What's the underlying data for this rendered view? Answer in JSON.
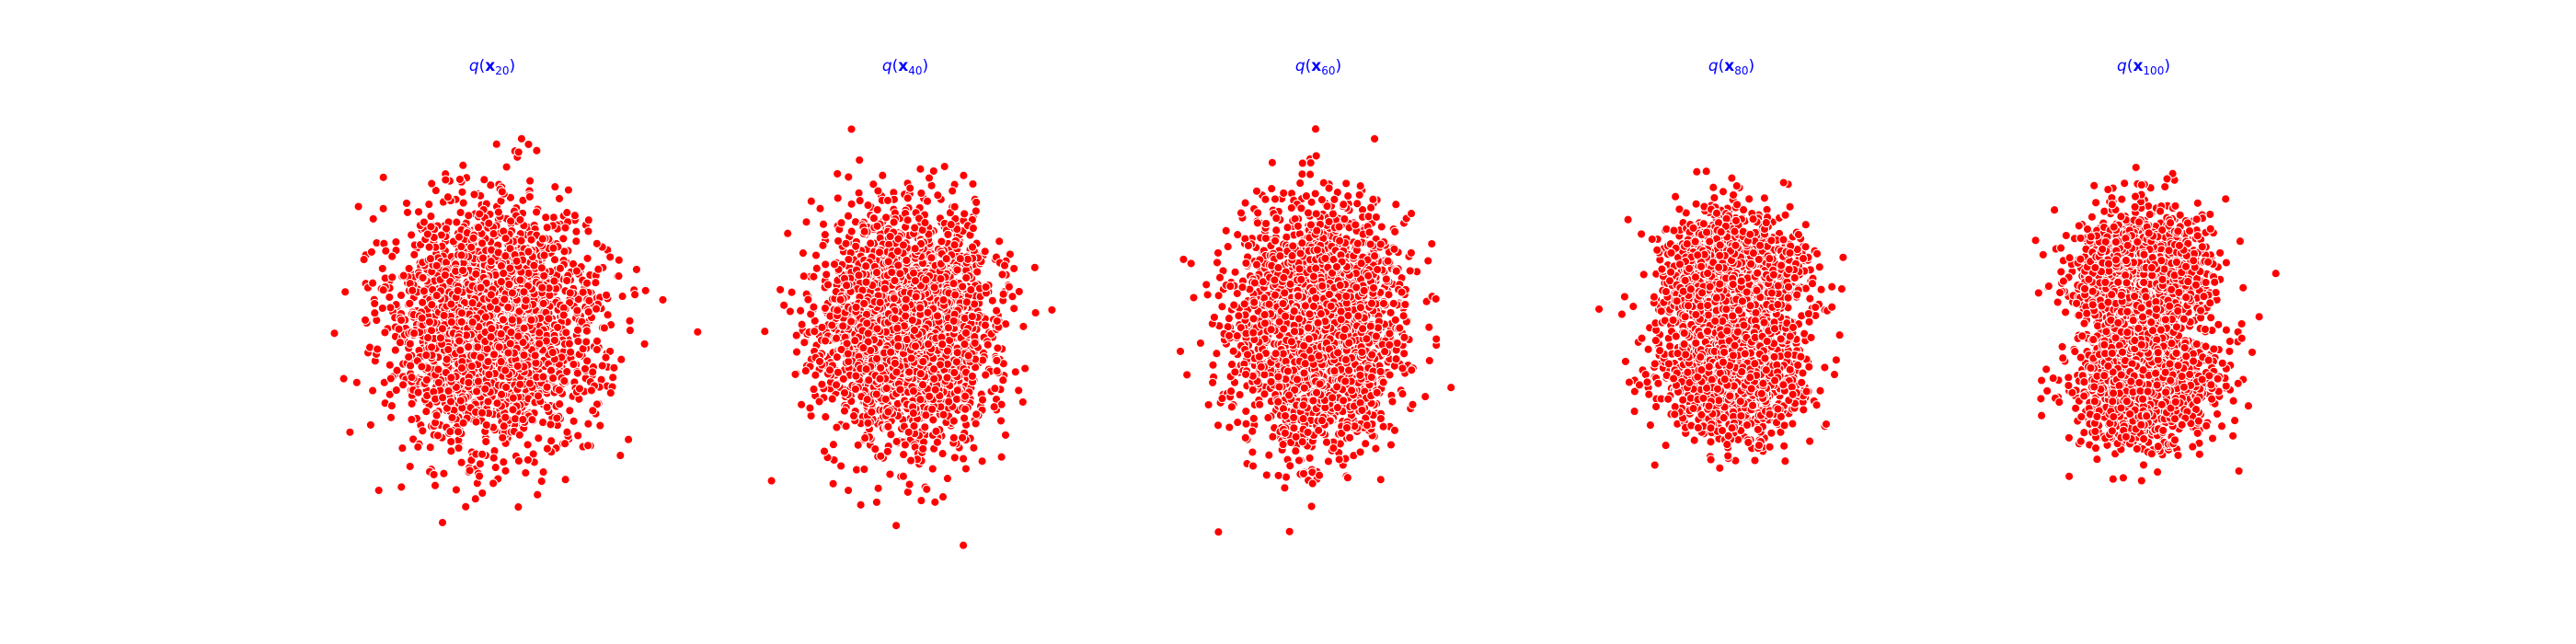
{
  "figure": {
    "background": "#ffffff",
    "point_color": "#ff0000",
    "point_edge_color": "#ffffff",
    "title_color": "#0000ff"
  },
  "chart_data": [
    {
      "type": "scatter",
      "title": "q(x_20)",
      "title_parts": {
        "fn": "q",
        "var": "x",
        "sub": "20"
      },
      "axes_visible": false,
      "grid": false,
      "xlim": [
        -1.9,
        1.9
      ],
      "ylim": [
        -1.9,
        1.9
      ],
      "n_points": 2600,
      "distribution": {
        "shape": "gaussian_blob",
        "std_x": 0.42,
        "std_y": 0.5,
        "hole_depth": 0.0
      },
      "seed": 20
    },
    {
      "type": "scatter",
      "title": "q(x_40)",
      "title_parts": {
        "fn": "q",
        "var": "x",
        "sub": "40"
      },
      "axes_visible": false,
      "grid": false,
      "xlim": [
        -1.9,
        1.9
      ],
      "ylim": [
        -1.9,
        1.9
      ],
      "n_points": 2600,
      "distribution": {
        "shape": "gaussian_blob",
        "std_x": 0.36,
        "std_y": 0.47,
        "hole_depth": 0.0
      },
      "seed": 40
    },
    {
      "type": "scatter",
      "title": "q(x_60)",
      "title_parts": {
        "fn": "q",
        "var": "x",
        "sub": "60"
      },
      "axes_visible": false,
      "grid": false,
      "xlim": [
        -1.9,
        1.9
      ],
      "ylim": [
        -1.9,
        1.9
      ],
      "n_points": 2600,
      "distribution": {
        "shape": "gaussian_blob",
        "std_x": 0.33,
        "std_y": 0.48,
        "hole_depth": 0.0
      },
      "seed": 60
    },
    {
      "type": "scatter",
      "title": "q(x_80)",
      "title_parts": {
        "fn": "q",
        "var": "x",
        "sub": "80"
      },
      "axes_visible": false,
      "grid": false,
      "xlim": [
        -1.9,
        1.9
      ],
      "ylim": [
        -1.9,
        1.9
      ],
      "n_points": 2600,
      "distribution": {
        "shape": "two_lobes",
        "std_x": 0.3,
        "std_y": 0.44,
        "hole_depth": 0.15
      },
      "seed": 80
    },
    {
      "type": "scatter",
      "title": "q(x_100)",
      "title_parts": {
        "fn": "q",
        "var": "x",
        "sub": "100"
      },
      "axes_visible": false,
      "grid": false,
      "xlim": [
        -1.9,
        1.9
      ],
      "ylim": [
        -1.9,
        1.9
      ],
      "n_points": 2600,
      "distribution": {
        "shape": "two_lobes_holes",
        "std_x": 0.28,
        "std_y": 0.46,
        "hole_depth": 0.6
      },
      "seed": 100
    }
  ]
}
